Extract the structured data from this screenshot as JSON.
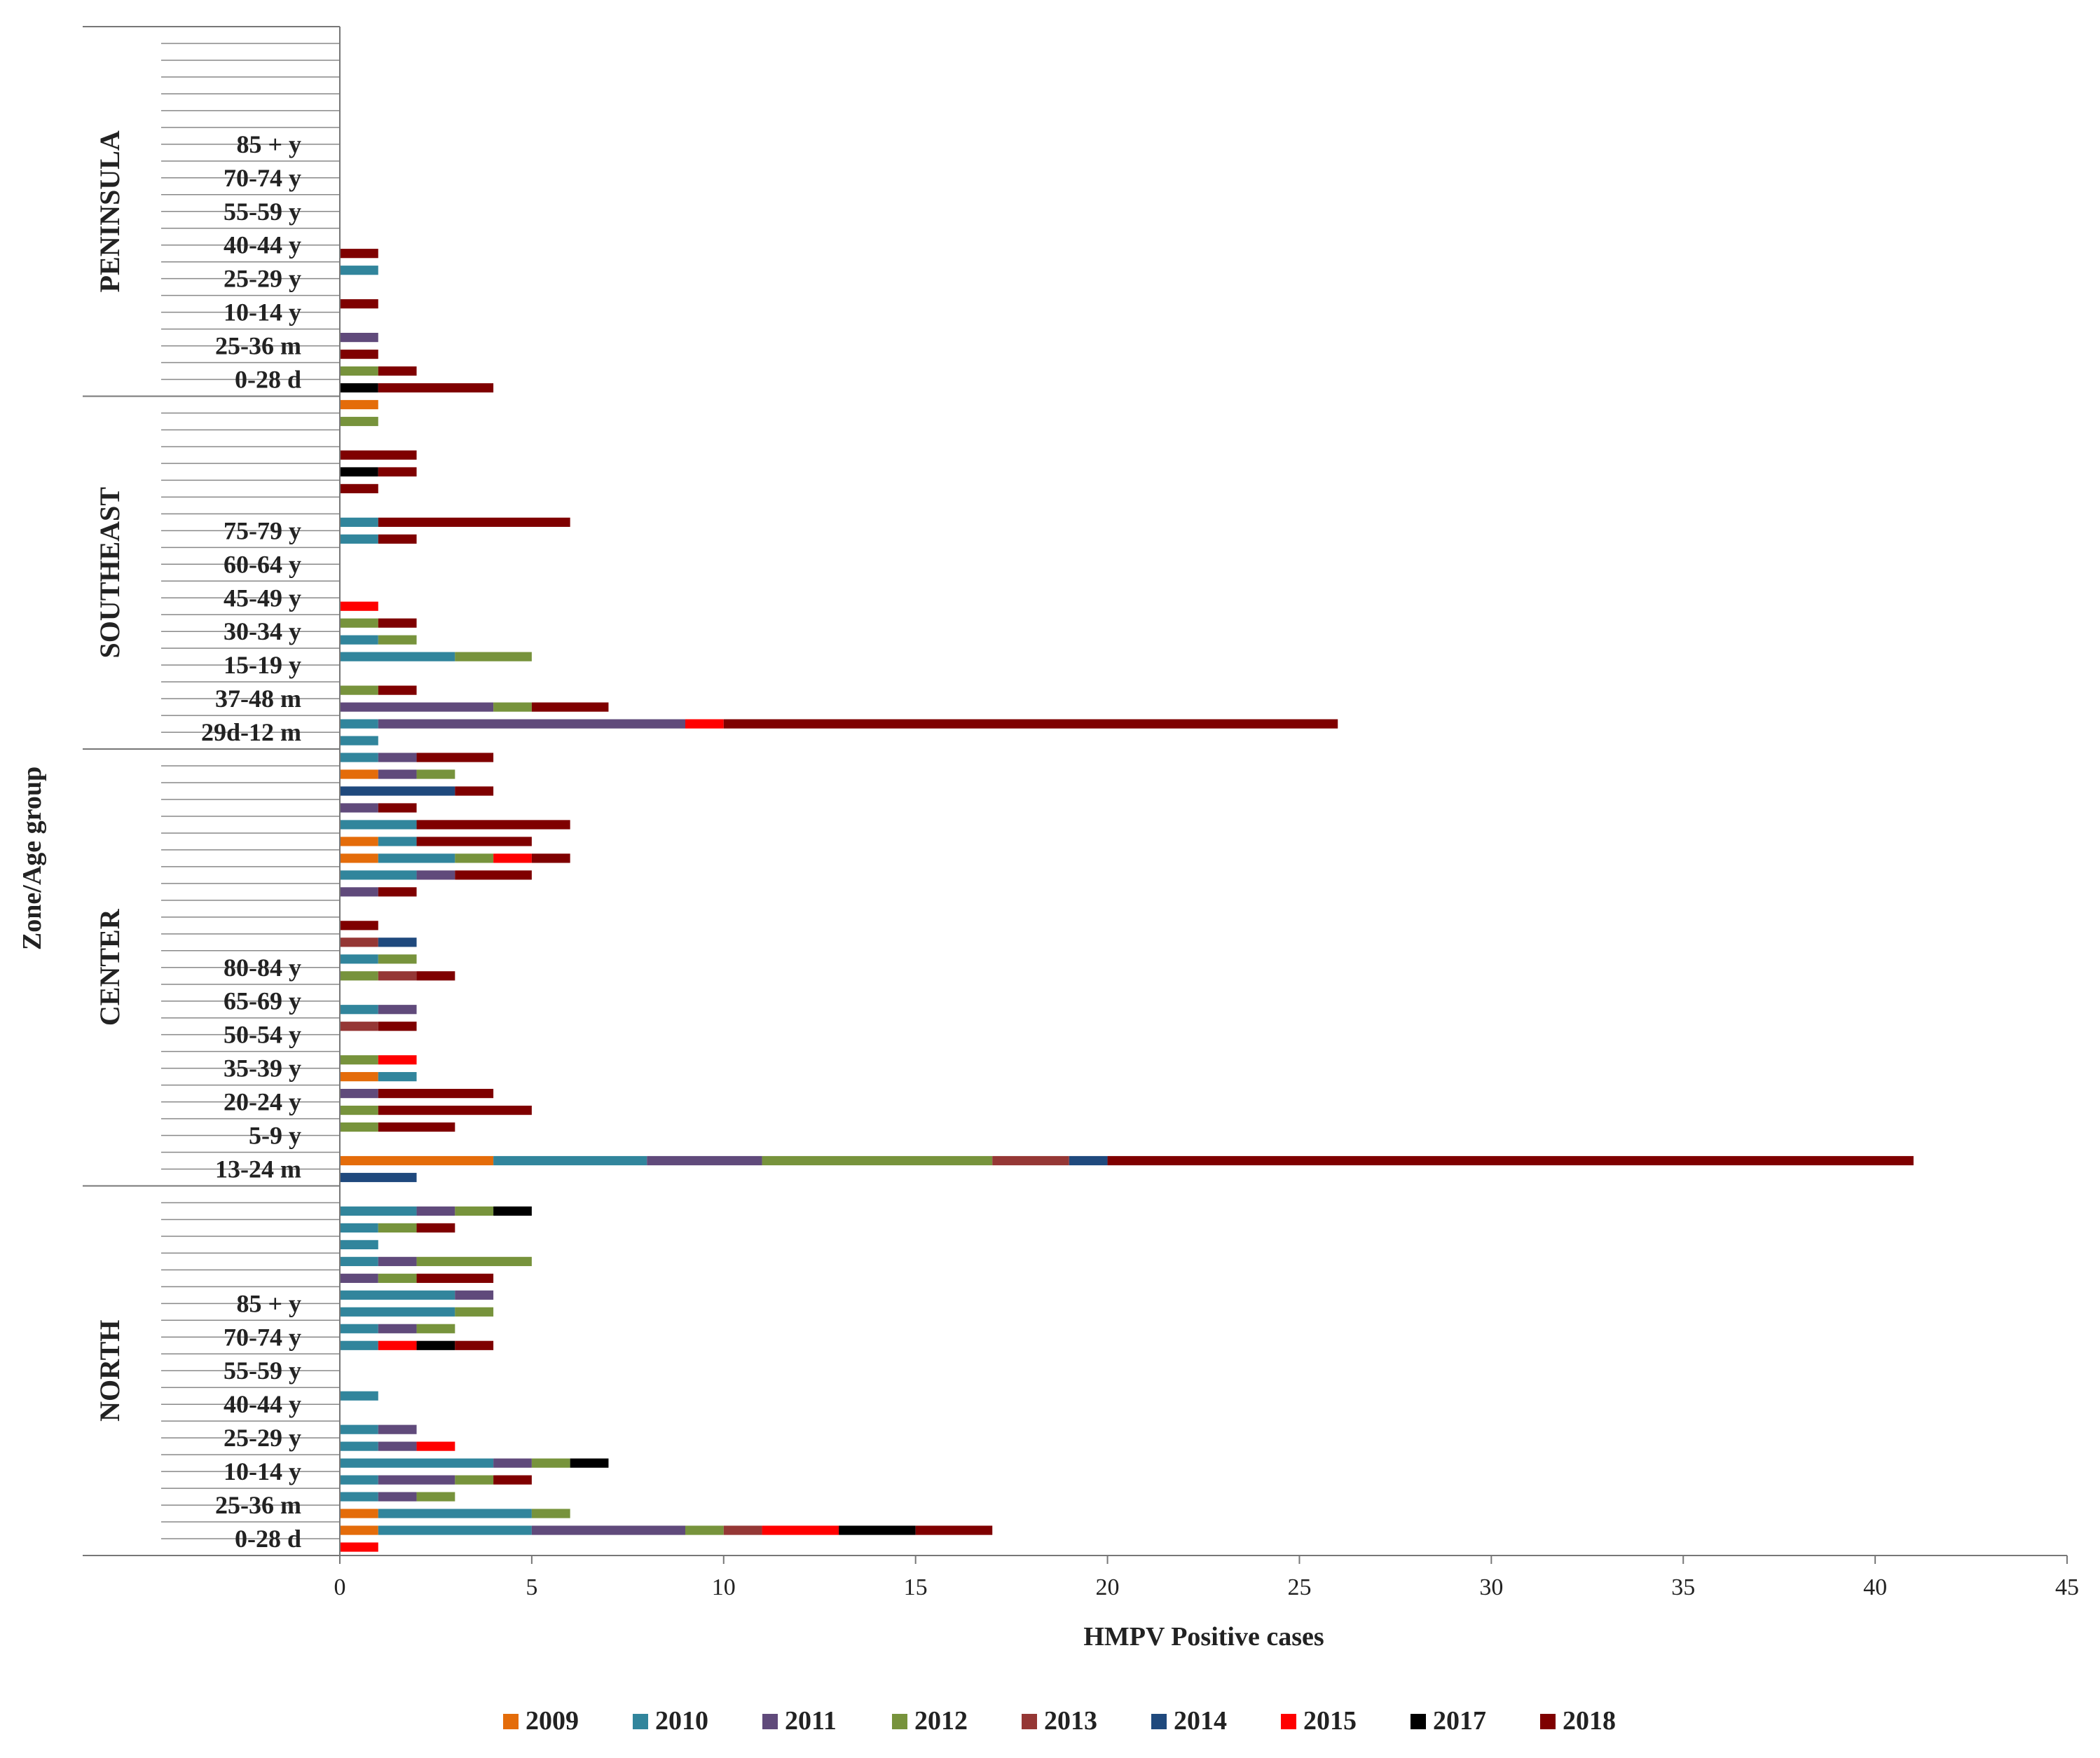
{
  "chart_data": {
    "type": "bar",
    "orientation": "horizontal",
    "stacked": true,
    "xlabel": "HMPV Positive cases",
    "ylabel": "Zone/Age group",
    "xlim": [
      0,
      45
    ],
    "xticks": [
      0,
      5,
      10,
      15,
      20,
      25,
      30,
      35,
      40,
      45
    ],
    "legend_position": "bottom",
    "series_names": [
      "2009",
      "2010",
      "2011",
      "2012",
      "2013",
      "2014",
      "2015",
      "2017",
      "2018"
    ],
    "colors": {
      "2009": "#E46C0A",
      "2010": "#31859C",
      "2011": "#604A7B",
      "2012": "#77933C",
      "2013": "#953735",
      "2014": "#1F497D",
      "2015": "#FF0000",
      "2017": "#000000",
      "2018": "#7F0000"
    },
    "zones": [
      {
        "name": "NORTH",
        "labels": [
          "0-28 d",
          "25-36 m",
          "10-14 y",
          "25-29 y",
          "40-44 y",
          "55-59 y",
          "70-74 y",
          "85 + y"
        ],
        "bars": [
          {
            "2015": 1
          },
          {
            "2009": 1,
            "2010": 4,
            "2011": 4,
            "2012": 1,
            "2013": 1,
            "2015": 2,
            "2017": 2,
            "2018": 2
          },
          {
            "2009": 1,
            "2010": 4,
            "2012": 1
          },
          {
            "2010": 1,
            "2011": 1,
            "2012": 1
          },
          {
            "2010": 1,
            "2011": 2,
            "2012": 1,
            "2018": 1
          },
          {
            "2010": 4,
            "2011": 1,
            "2012": 1,
            "2017": 1
          },
          {
            "2010": 1,
            "2011": 1,
            "2015": 1
          },
          {
            "2010": 1,
            "2011": 1
          },
          {},
          {
            "2010": 1
          },
          {},
          {},
          {
            "2010": 1,
            "2015": 1,
            "2017": 1,
            "2018": 1
          },
          {
            "2010": 1,
            "2011": 1,
            "2012": 1
          },
          {
            "2010": 3,
            "2012": 1
          },
          {
            "2010": 3,
            "2011": 1
          },
          {
            "2011": 1,
            "2012": 1,
            "2018": 2
          },
          {
            "2010": 1,
            "2011": 1,
            "2012": 3
          },
          {
            "2010": 1
          },
          {
            "2010": 1,
            "2012": 1,
            "2018": 1
          },
          {
            "2010": 2,
            "2011": 1,
            "2012": 1,
            "2017": 1
          },
          {}
        ]
      },
      {
        "name": "CENTER",
        "labels": [
          "13-24 m",
          "5-9 y",
          "20-24 y",
          "35-39 y",
          "50-54 y",
          "65-69 y",
          "80-84 y"
        ],
        "bars": [
          {
            "2014": 2
          },
          {
            "2009": 4,
            "2010": 4,
            "2011": 3,
            "2012": 6,
            "2013": 2,
            "2014": 1,
            "2018": 21
          },
          {},
          {
            "2012": 1,
            "2018": 2
          },
          {
            "2012": 1,
            "2018": 4
          },
          {
            "2011": 1,
            "2018": 3
          },
          {
            "2009": 1,
            "2010": 1
          },
          {
            "2012": 1,
            "2015": 1
          },
          {},
          {
            "2013": 1,
            "2018": 1
          },
          {
            "2010": 1,
            "2011": 1
          },
          {},
          {
            "2012": 1,
            "2013": 1,
            "2018": 1
          },
          {
            "2010": 1,
            "2012": 1
          },
          {
            "2013": 1,
            "2014": 1
          },
          {
            "2018": 1
          },
          {},
          {
            "2011": 1,
            "2018": 1
          },
          {
            "2010": 2,
            "2011": 1,
            "2018": 2
          },
          {
            "2009": 1,
            "2010": 2,
            "2012": 1,
            "2015": 1,
            "2018": 1
          },
          {
            "2009": 1,
            "2010": 1,
            "2018": 3
          },
          {
            "2010": 2,
            "2018": 4
          },
          {
            "2011": 1,
            "2018": 1
          },
          {
            "2014": 3,
            "2018": 1
          },
          {
            "2009": 1,
            "2011": 1,
            "2012": 1
          },
          {
            "2010": 1,
            "2011": 1,
            "2018": 2
          }
        ]
      },
      {
        "name": "SOUTHEAST",
        "labels": [
          "29d-12 m",
          "37-48 m",
          "15-19 y",
          "30-34 y",
          "45-49 y",
          "60-64 y",
          "75-79 y"
        ],
        "bars": [
          {
            "2010": 1
          },
          {
            "2010": 1,
            "2011": 8,
            "2015": 1,
            "2018": 16
          },
          {
            "2011": 4,
            "2012": 1,
            "2018": 2
          },
          {
            "2012": 1,
            "2018": 1
          },
          {},
          {
            "2010": 3,
            "2012": 2
          },
          {
            "2010": 1,
            "2012": 1
          },
          {
            "2012": 1,
            "2018": 1
          },
          {
            "2015": 1
          },
          {},
          {},
          {},
          {
            "2010": 1,
            "2018": 1
          },
          {
            "2010": 1,
            "2018": 5
          },
          {},
          {
            "2018": 1
          },
          {
            "2017": 1,
            "2018": 1
          },
          {
            "2018": 2
          },
          {},
          {
            "2012": 1
          },
          {
            "2009": 1
          }
        ]
      },
      {
        "name": "PENINSULA",
        "labels": [
          "0-28 d",
          "25-36 m",
          "10-14 y",
          "25-29 y",
          "40-44 y",
          "55-59 y",
          "70-74 y",
          "85 + y"
        ],
        "bars": [
          {
            "2017": 1,
            "2018": 3
          },
          {
            "2012": 1,
            "2018": 1
          },
          {
            "2018": 1
          },
          {
            "2011": 1
          },
          {},
          {
            "2018": 1
          },
          {},
          {
            "2010": 1
          },
          {
            "2018": 1
          },
          {},
          {},
          {},
          {},
          {},
          {},
          {},
          {},
          {},
          {},
          {},
          {},
          {}
        ]
      }
    ]
  }
}
